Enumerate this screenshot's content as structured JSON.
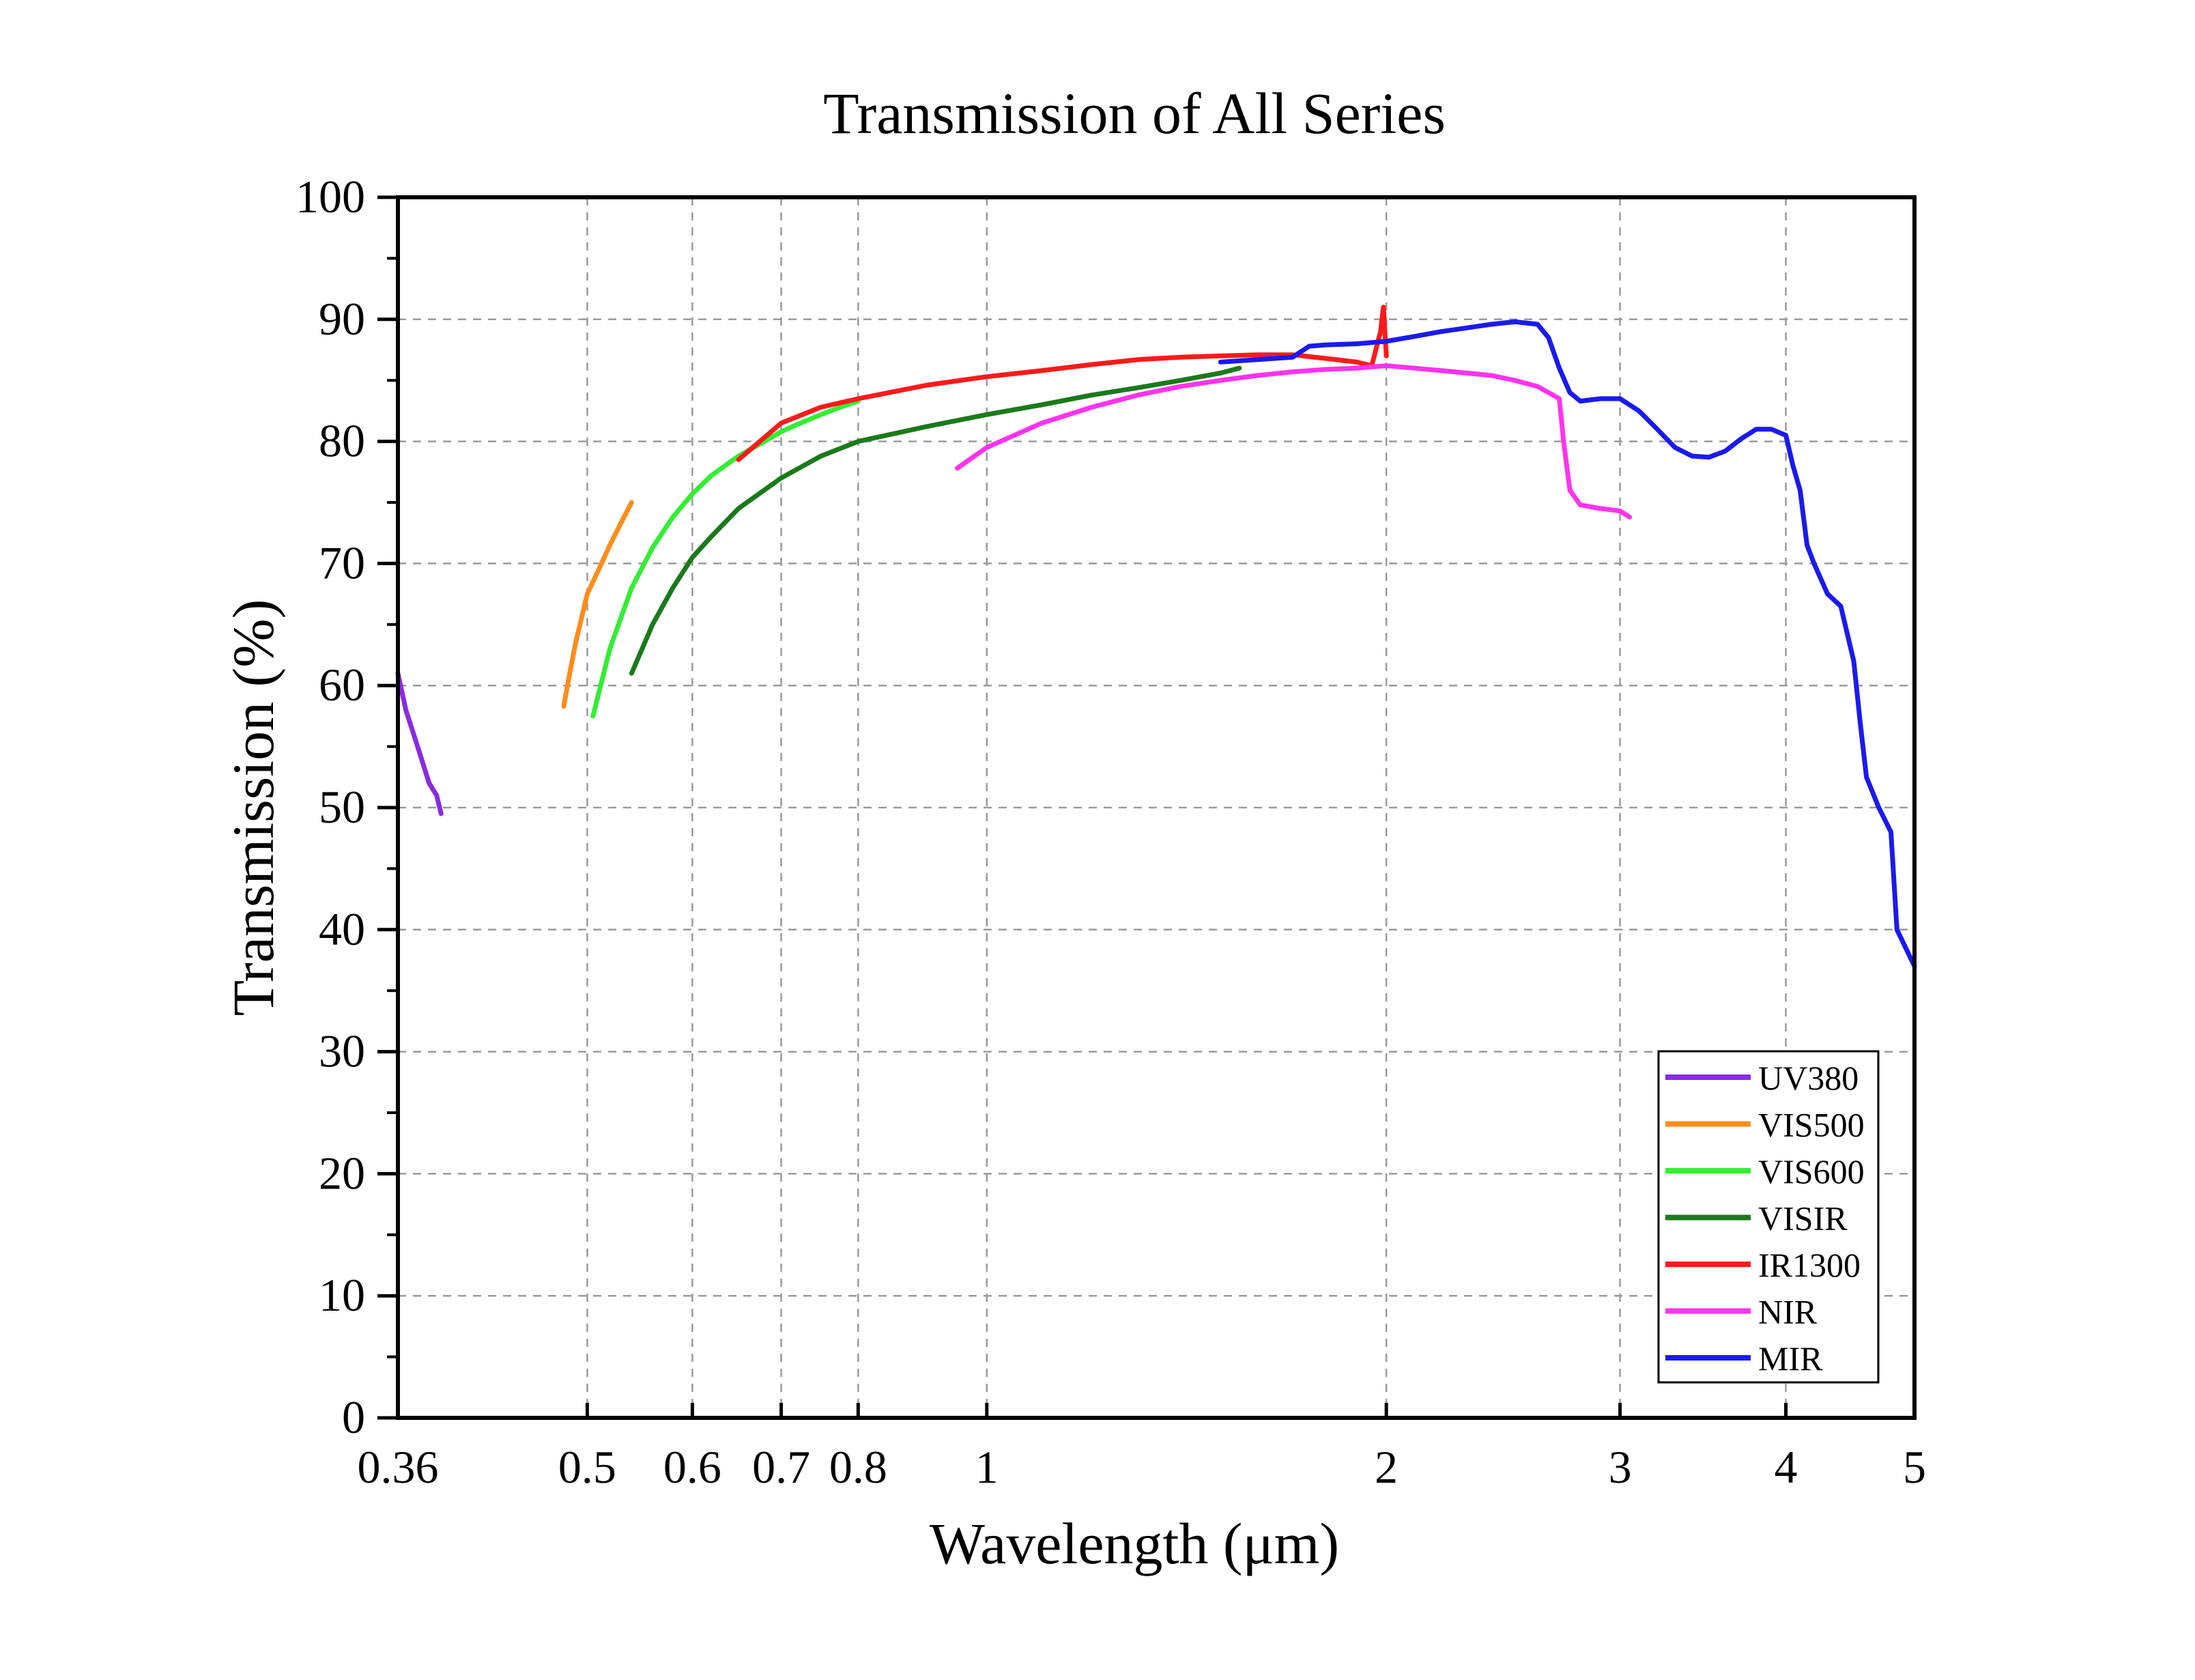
{
  "chart_data": {
    "type": "line",
    "title": "Transmission of All Series",
    "xlabel": "Wavelength (μm)",
    "ylabel": "Transmission (%)",
    "x_scale": "log",
    "xlim": [
      0.36,
      5
    ],
    "ylim": [
      0,
      100
    ],
    "x_ticks": [
      0.36,
      0.5,
      0.6,
      0.7,
      0.8,
      1,
      2,
      3,
      4,
      5
    ],
    "x_tick_labels": [
      "0.36",
      "0.5",
      "0.6",
      "0.7",
      "0.8",
      "1",
      "2",
      "3",
      "4",
      "5"
    ],
    "y_ticks": [
      0,
      10,
      20,
      30,
      40,
      50,
      60,
      70,
      80,
      90,
      100
    ],
    "y_tick_labels": [
      "0",
      "10",
      "20",
      "30",
      "40",
      "50",
      "60",
      "70",
      "80",
      "90",
      "100"
    ],
    "grid": true,
    "legend_position": "bottom-right",
    "series": [
      {
        "name": "UV380",
        "color": "#8a2be2",
        "x": [
          0.36,
          0.365,
          0.37,
          0.375,
          0.38,
          0.385,
          0.388
        ],
        "y": [
          61,
          58,
          56,
          54,
          52,
          51,
          49.5
        ]
      },
      {
        "name": "VIS500",
        "color": "#ff8c1a",
        "x": [
          0.48,
          0.485,
          0.49,
          0.495,
          0.5,
          0.51,
          0.52,
          0.53,
          0.54
        ],
        "y": [
          58.3,
          61,
          63.5,
          65.5,
          67.5,
          69.5,
          71.5,
          73.3,
          75
        ]
      },
      {
        "name": "VIS600",
        "color": "#33ee33",
        "x": [
          0.505,
          0.52,
          0.54,
          0.56,
          0.58,
          0.6,
          0.62,
          0.65,
          0.68,
          0.7,
          0.72,
          0.75,
          0.78,
          0.8
        ],
        "y": [
          57.5,
          63,
          68,
          71.3,
          73.8,
          75.7,
          77.2,
          78.8,
          80,
          80.8,
          81.4,
          82.2,
          82.9,
          83.3
        ]
      },
      {
        "name": "VISIR",
        "color": "#1a7a1a",
        "x": [
          0.54,
          0.56,
          0.58,
          0.6,
          0.62,
          0.65,
          0.7,
          0.75,
          0.8,
          0.9,
          1.0,
          1.1,
          1.2,
          1.3,
          1.4,
          1.5,
          1.55
        ],
        "y": [
          61,
          65,
          68,
          70.5,
          72.2,
          74.5,
          77,
          78.8,
          80,
          81.2,
          82.2,
          83,
          83.8,
          84.4,
          85,
          85.6,
          86
        ]
      },
      {
        "name": "IR1300",
        "color": "#ff1a1a",
        "x": [
          0.65,
          0.7,
          0.75,
          0.8,
          0.9,
          1.0,
          1.1,
          1.2,
          1.3,
          1.4,
          1.5,
          1.6,
          1.7,
          1.8,
          1.9,
          1.95,
          1.98,
          1.99,
          2.0
        ],
        "y": [
          78.5,
          81.5,
          82.8,
          83.5,
          84.6,
          85.3,
          85.8,
          86.3,
          86.7,
          86.9,
          87,
          87.1,
          87.1,
          86.8,
          86.5,
          86.2,
          89,
          91,
          87
        ]
      },
      {
        "name": "NIR",
        "color": "#ff33ee",
        "x": [
          0.95,
          1.0,
          1.1,
          1.2,
          1.3,
          1.4,
          1.5,
          1.6,
          1.7,
          1.8,
          1.9,
          2.0,
          2.1,
          2.2,
          2.3,
          2.4,
          2.5,
          2.6,
          2.65,
          2.7,
          2.72,
          2.75,
          2.8,
          2.9,
          3.0,
          3.05
        ],
        "y": [
          77.8,
          79.5,
          81.5,
          82.8,
          83.8,
          84.5,
          85,
          85.4,
          85.7,
          85.9,
          86,
          86.2,
          86,
          85.8,
          85.6,
          85.4,
          85,
          84.5,
          84,
          83.5,
          80,
          76,
          74.8,
          74.5,
          74.3,
          73.8
        ]
      },
      {
        "name": "MIR",
        "color": "#1a1aee",
        "x": [
          1.5,
          1.6,
          1.7,
          1.75,
          1.8,
          1.9,
          2.0,
          2.1,
          2.2,
          2.3,
          2.4,
          2.5,
          2.6,
          2.65,
          2.7,
          2.75,
          2.8,
          2.9,
          3.0,
          3.1,
          3.2,
          3.3,
          3.4,
          3.5,
          3.6,
          3.7,
          3.8,
          3.9,
          4.0,
          4.05,
          4.1,
          4.15,
          4.2,
          4.3,
          4.4,
          4.5,
          4.55,
          4.6,
          4.7,
          4.8,
          4.85,
          4.9,
          5.0
        ],
        "y": [
          86.5,
          86.7,
          86.9,
          87.8,
          87.9,
          88,
          88.2,
          88.6,
          89,
          89.3,
          89.6,
          89.8,
          89.6,
          88.5,
          86,
          84,
          83.3,
          83.5,
          83.5,
          82.5,
          81,
          79.5,
          78.8,
          78.7,
          79.2,
          80.2,
          81,
          81,
          80.5,
          78,
          76,
          71.5,
          70,
          67.5,
          66.5,
          62,
          57,
          52.5,
          50,
          48,
          40,
          39,
          37
        ]
      }
    ]
  }
}
